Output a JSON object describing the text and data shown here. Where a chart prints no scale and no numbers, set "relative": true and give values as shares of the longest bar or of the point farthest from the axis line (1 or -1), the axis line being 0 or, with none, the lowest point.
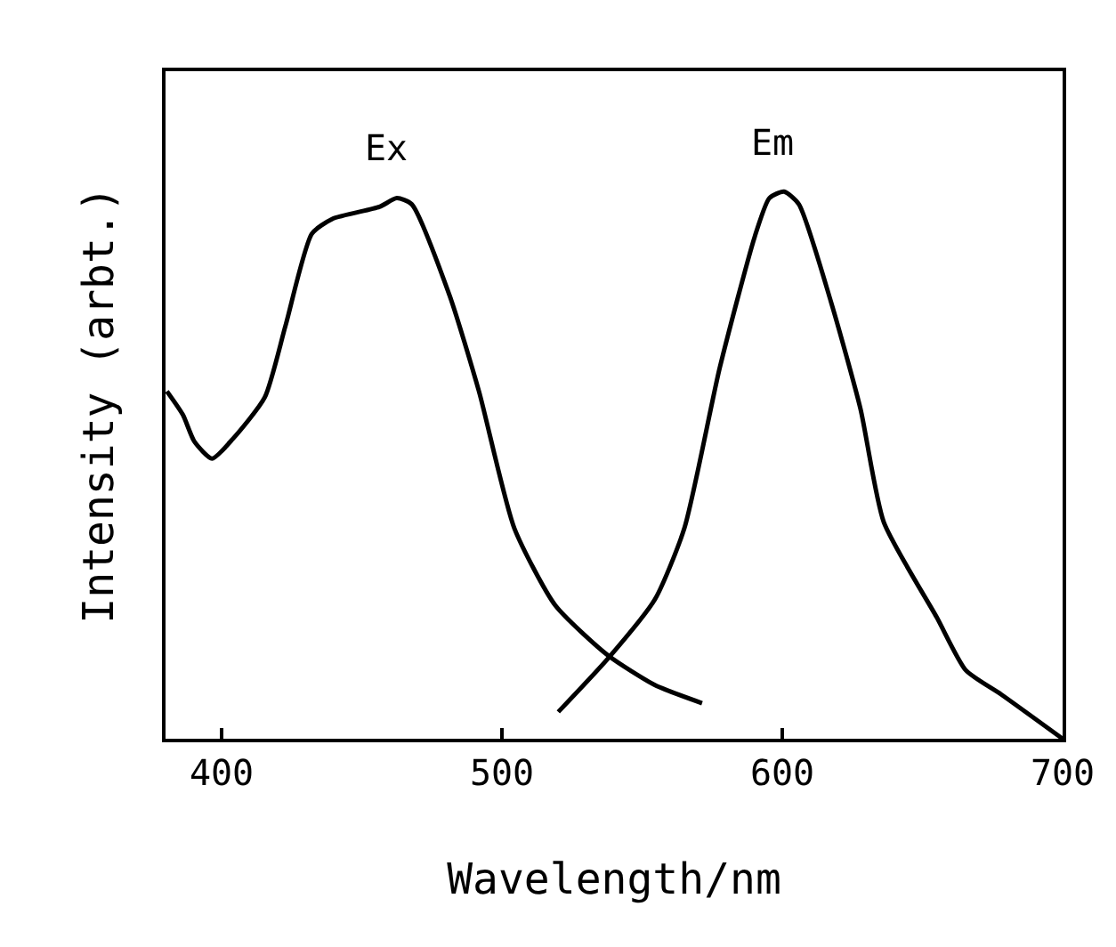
{
  "chart_data": {
    "type": "line",
    "relative": true,
    "xlabel": "Wavelength/nm",
    "ylabel": "Intensity (arbt.)",
    "xlim": [
      380,
      700
    ],
    "xticks": [
      400,
      500,
      600,
      700
    ],
    "grid": false,
    "legend": false,
    "marker": "none",
    "line_style": "solid",
    "series": [
      {
        "name": "Ex",
        "color": "#000000",
        "x": [
          380.5,
          386.2,
          390.3,
          396.6,
          404,
          415.4,
          422.8,
          432.2,
          439.5,
          456.3,
          462.5,
          467.8,
          481.4,
          491.8,
          504.4,
          519,
          537.9,
          554.6,
          571.4
        ],
        "values": [
          0.635,
          0.592,
          0.543,
          0.512,
          0.548,
          0.624,
          0.755,
          0.923,
          0.95,
          0.972,
          0.988,
          0.977,
          0.809,
          0.635,
          0.385,
          0.244,
          0.152,
          0.098,
          0.065
        ]
      },
      {
        "name": "Em",
        "color": "#000000",
        "x": [
          520.1,
          537.9,
          554.6,
          565.1,
          577.7,
          590.2,
          595.4,
          600.6,
          605.9,
          617.4,
          627.9,
          636.2,
          655.1,
          665.5,
          678.1,
          700
        ],
        "values": [
          0.049,
          0.147,
          0.255,
          0.385,
          0.678,
          0.918,
          0.988,
          1,
          0.977,
          0.798,
          0.603,
          0.396,
          0.222,
          0.125,
          0.081,
          0
        ]
      }
    ]
  }
}
